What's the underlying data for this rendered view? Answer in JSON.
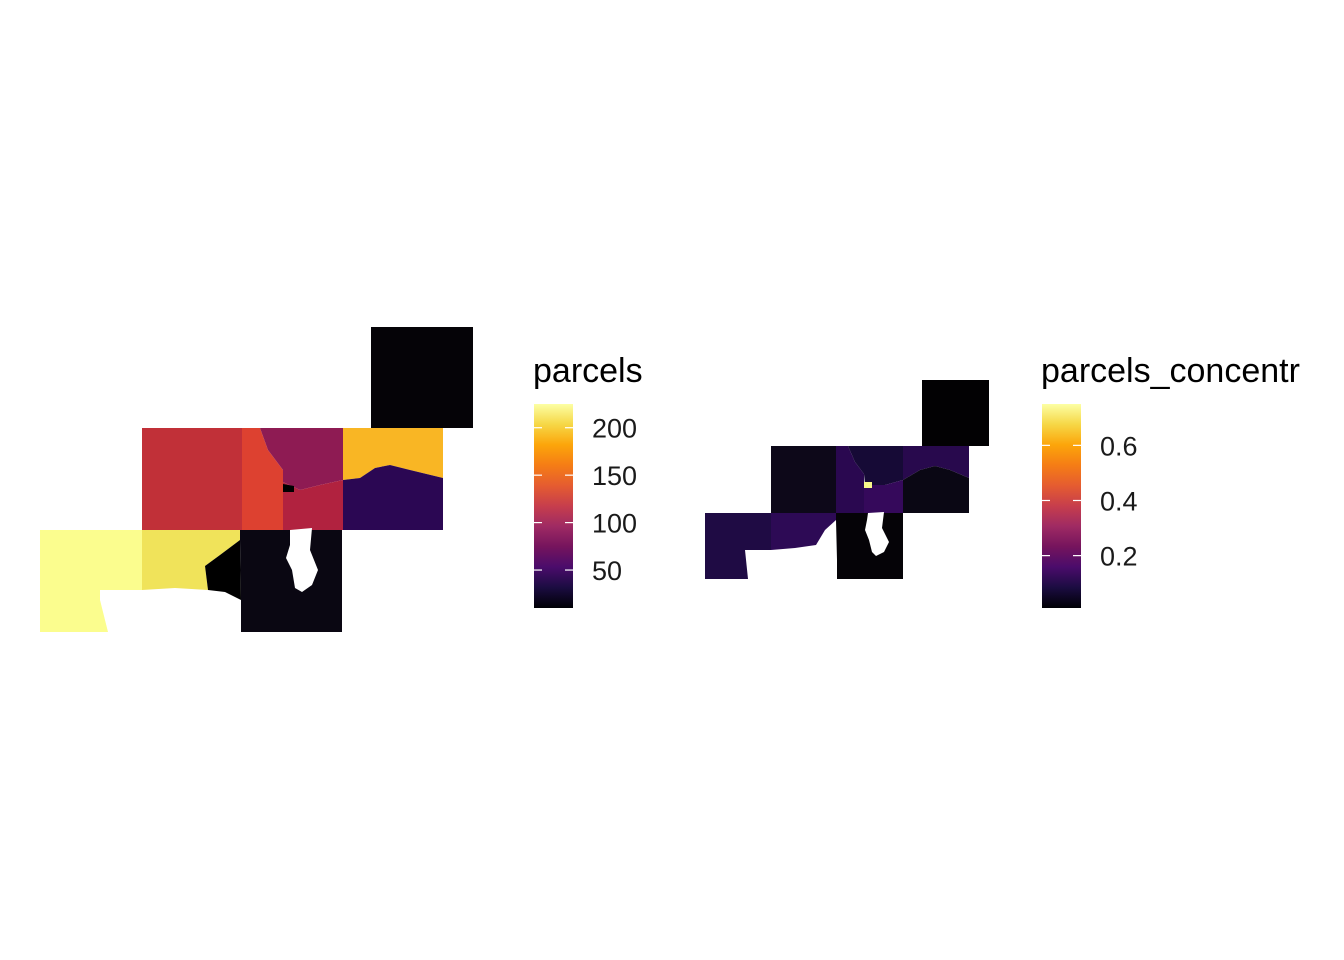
{
  "maps": [
    {
      "id": "parcels",
      "legend": {
        "title": "parcels",
        "ticks": [
          "200",
          "150",
          "100",
          "50"
        ],
        "tick_values": [
          200,
          150,
          100,
          50
        ],
        "range": [
          10,
          225
        ],
        "palette": "inferno",
        "gradient": [
          "#fcffa4",
          "#f6d746",
          "#fca50a",
          "#f57d15",
          "#e55c30",
          "#c73e4c",
          "#9f2a63",
          "#75145d",
          "#4a0c6b",
          "#1b0c41",
          "#000004"
        ]
      },
      "regions": [
        {
          "name": "region-w-large",
          "value": 225,
          "color": "#fbfd8e"
        },
        {
          "name": "region-sw-coast",
          "value": 210,
          "color": "#f0e35a"
        },
        {
          "name": "region-w-center",
          "value": 125,
          "color": "#c13038"
        },
        {
          "name": "region-center-strip",
          "value": 140,
          "color": "#dd4130"
        },
        {
          "name": "region-n-center",
          "value": 100,
          "color": "#8e1b53"
        },
        {
          "name": "region-ne",
          "value": 180,
          "color": "#f9b624"
        },
        {
          "name": "region-center",
          "value": 110,
          "color": "#b1223f"
        },
        {
          "name": "region-e",
          "value": 30,
          "color": "#2b0753"
        },
        {
          "name": "region-far-ne",
          "value": 5,
          "color": "#050307"
        },
        {
          "name": "region-se",
          "value": 8,
          "color": "#0a0712"
        },
        {
          "name": "region-shore-sliver",
          "value": 2,
          "color": "#000000"
        }
      ]
    },
    {
      "id": "parcels_concentration",
      "legend": {
        "title": "parcels_concentr",
        "ticks": [
          "0.6",
          "0.4",
          "0.2"
        ],
        "tick_values": [
          0.6,
          0.4,
          0.2
        ],
        "range": [
          0.01,
          0.75
        ],
        "palette": "inferno",
        "gradient": [
          "#fcffa4",
          "#f6d746",
          "#fca50a",
          "#f57d15",
          "#e55c30",
          "#c73e4c",
          "#9f2a63",
          "#75145d",
          "#4a0c6b",
          "#1b0c41",
          "#000004"
        ]
      },
      "regions": [
        {
          "name": "region-w-large",
          "value": 0.1,
          "color": "#1f0b44"
        },
        {
          "name": "region-sw-coast",
          "value": 0.12,
          "color": "#2d0a55"
        },
        {
          "name": "region-w-center",
          "value": 0.04,
          "color": "#0d0819"
        },
        {
          "name": "region-center-strip",
          "value": 0.12,
          "color": "#2a0850"
        },
        {
          "name": "region-n-center",
          "value": 0.08,
          "color": "#160a36"
        },
        {
          "name": "region-ne",
          "value": 0.12,
          "color": "#28094d"
        },
        {
          "name": "region-center",
          "value": 0.14,
          "color": "#35095b"
        },
        {
          "name": "region-e",
          "value": 0.03,
          "color": "#0a0714"
        },
        {
          "name": "region-far-ne",
          "value": 0.01,
          "color": "#020103"
        },
        {
          "name": "region-se",
          "value": 0.02,
          "color": "#050307"
        },
        {
          "name": "region-hotspot",
          "value": 0.75,
          "color": "#f8f88a"
        }
      ]
    }
  ]
}
